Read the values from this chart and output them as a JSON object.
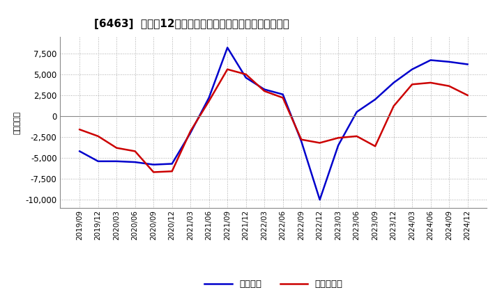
{
  "title": "[6463]  利益の12か月移動合計の対前年同期増減額の推移",
  "ylabel": "（百万円）",
  "legend": [
    "経常利益",
    "当期純利益"
  ],
  "line_colors": [
    "#0000cc",
    "#cc0000"
  ],
  "background_color": "#ffffff",
  "grid_color": "#aaaaaa",
  "xlabels": [
    "2019/09",
    "2019/12",
    "2020/03",
    "2020/06",
    "2020/09",
    "2020/12",
    "2021/03",
    "2021/06",
    "2021/09",
    "2021/12",
    "2022/03",
    "2022/06",
    "2022/09",
    "2022/12",
    "2023/03",
    "2023/06",
    "2023/09",
    "2023/12",
    "2024/03",
    "2024/06",
    "2024/09",
    "2024/12"
  ],
  "operating_profit": [
    -4200,
    -5400,
    -5400,
    -5500,
    -5800,
    -5700,
    -2000,
    2200,
    8200,
    4600,
    3200,
    2600,
    -3000,
    -10000,
    -3500,
    500,
    2000,
    4000,
    5600,
    6700,
    6500,
    6200
  ],
  "net_profit": [
    -1600,
    -2400,
    -3800,
    -4200,
    -6700,
    -6600,
    -1800,
    1800,
    5600,
    5000,
    3000,
    2200,
    -2800,
    -3200,
    -2600,
    -2400,
    -3600,
    1200,
    3800,
    4000,
    3600,
    2500
  ],
  "yticks": [
    7500,
    5000,
    2500,
    0,
    -2500,
    -5000,
    -7500,
    -10000
  ],
  "ylim": [
    -11000,
    9500
  ]
}
